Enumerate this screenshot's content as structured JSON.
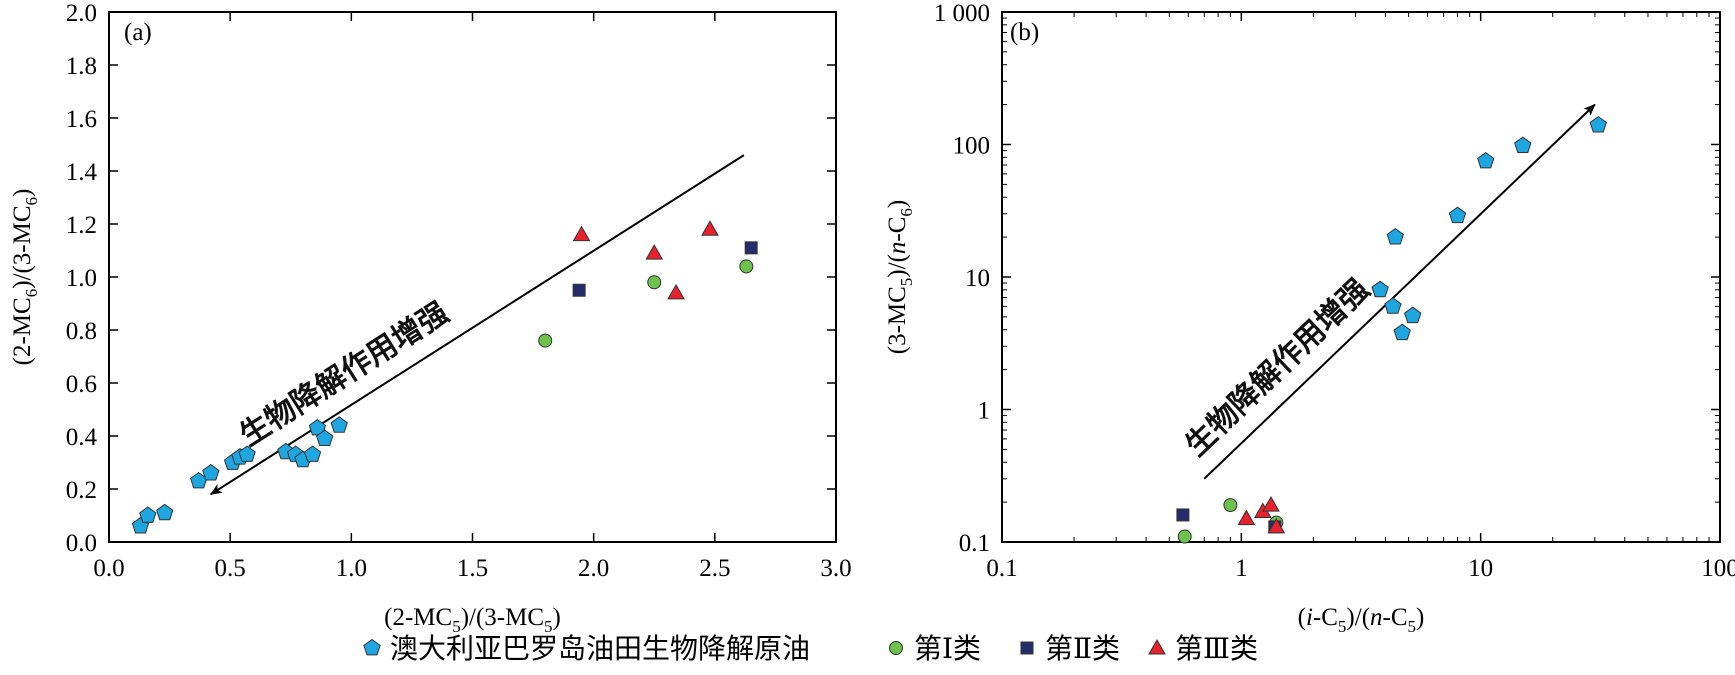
{
  "colors": {
    "australia": "#1ea6e0",
    "class1": "#6cc24a",
    "class2": "#242c6b",
    "class3": "#e8212d"
  },
  "legend": {
    "items": [
      {
        "key": "australia",
        "label": "澳大利亚巴罗岛油田生物降解原油",
        "marker": "pentagon"
      },
      {
        "key": "class1",
        "label": "第Ⅰ类",
        "marker": "circle"
      },
      {
        "key": "class2",
        "label": "第Ⅱ类",
        "marker": "square"
      },
      {
        "key": "class3",
        "label": "第Ⅲ类",
        "marker": "triangle"
      }
    ],
    "placement": "bottom-center"
  },
  "chart_data": [
    {
      "type": "scatter",
      "panel_label": "(a)",
      "xlabel": "(2-MC5)/(3-MC5)",
      "ylabel": "(2-MC6)/(3-MC6)",
      "xlim": [
        0,
        3.0
      ],
      "ylim": [
        0,
        2.0
      ],
      "x_ticks": [
        "0.0",
        "0.5",
        "1.0",
        "1.5",
        "2.0",
        "2.5",
        "3.0"
      ],
      "y_ticks": [
        "0.0",
        "0.2",
        "0.4",
        "0.6",
        "0.8",
        "1.0",
        "1.2",
        "1.4",
        "1.6",
        "1.8",
        "2.0"
      ],
      "annotation": {
        "text": "生物降解作用增强",
        "arrow_from": [
          2.62,
          1.46
        ],
        "arrow_to": [
          0.42,
          0.18
        ]
      },
      "series": [
        {
          "key": "australia",
          "points": [
            [
              0.13,
              0.06
            ],
            [
              0.16,
              0.1
            ],
            [
              0.23,
              0.11
            ],
            [
              0.37,
              0.23
            ],
            [
              0.42,
              0.26
            ],
            [
              0.51,
              0.3
            ],
            [
              0.54,
              0.32
            ],
            [
              0.57,
              0.33
            ],
            [
              0.73,
              0.34
            ],
            [
              0.77,
              0.33
            ],
            [
              0.8,
              0.31
            ],
            [
              0.84,
              0.33
            ],
            [
              0.86,
              0.43
            ],
            [
              0.89,
              0.39
            ],
            [
              0.95,
              0.44
            ]
          ]
        },
        {
          "key": "class1",
          "points": [
            [
              1.8,
              0.76
            ],
            [
              2.25,
              0.98
            ],
            [
              2.63,
              1.04
            ]
          ]
        },
        {
          "key": "class2",
          "points": [
            [
              1.94,
              0.95
            ],
            [
              2.65,
              1.11
            ]
          ]
        },
        {
          "key": "class3",
          "points": [
            [
              1.95,
              1.16
            ],
            [
              2.25,
              1.09
            ],
            [
              2.34,
              0.94
            ],
            [
              2.48,
              1.18
            ]
          ]
        }
      ]
    },
    {
      "type": "scatter",
      "panel_label": "(b)",
      "xlabel": "(i-C5)/(n-C5)",
      "ylabel": "(3-MC5)/(n-C6)",
      "x_scale": "log",
      "y_scale": "log",
      "xlim": [
        0.1,
        100
      ],
      "ylim": [
        0.1,
        1000
      ],
      "x_ticks": [
        "0.1",
        "1",
        "10",
        "100"
      ],
      "y_ticks": [
        "0.1",
        "1",
        "10",
        "100",
        "1 000"
      ],
      "annotation": {
        "text": "生物降解作用增强",
        "arrow_from": [
          0.7,
          0.3
        ],
        "arrow_to": [
          30,
          200
        ]
      },
      "series": [
        {
          "key": "australia",
          "points": [
            [
              3.8,
              8.0
            ],
            [
              4.3,
              6.0
            ],
            [
              4.4,
              20.0
            ],
            [
              4.7,
              3.8
            ],
            [
              5.2,
              5.1
            ],
            [
              8.0,
              29.0
            ],
            [
              10.5,
              75.0
            ],
            [
              15.0,
              98.0
            ],
            [
              31.0,
              140.0
            ]
          ]
        },
        {
          "key": "class1",
          "points": [
            [
              0.58,
              0.11
            ],
            [
              0.9,
              0.19
            ],
            [
              1.4,
              0.14
            ]
          ]
        },
        {
          "key": "class2",
          "points": [
            [
              0.57,
              0.16
            ],
            [
              1.38,
              0.13
            ]
          ]
        },
        {
          "key": "class3",
          "points": [
            [
              1.05,
              0.15
            ],
            [
              1.23,
              0.17
            ],
            [
              1.33,
              0.19
            ],
            [
              1.4,
              0.13
            ]
          ]
        }
      ]
    }
  ]
}
